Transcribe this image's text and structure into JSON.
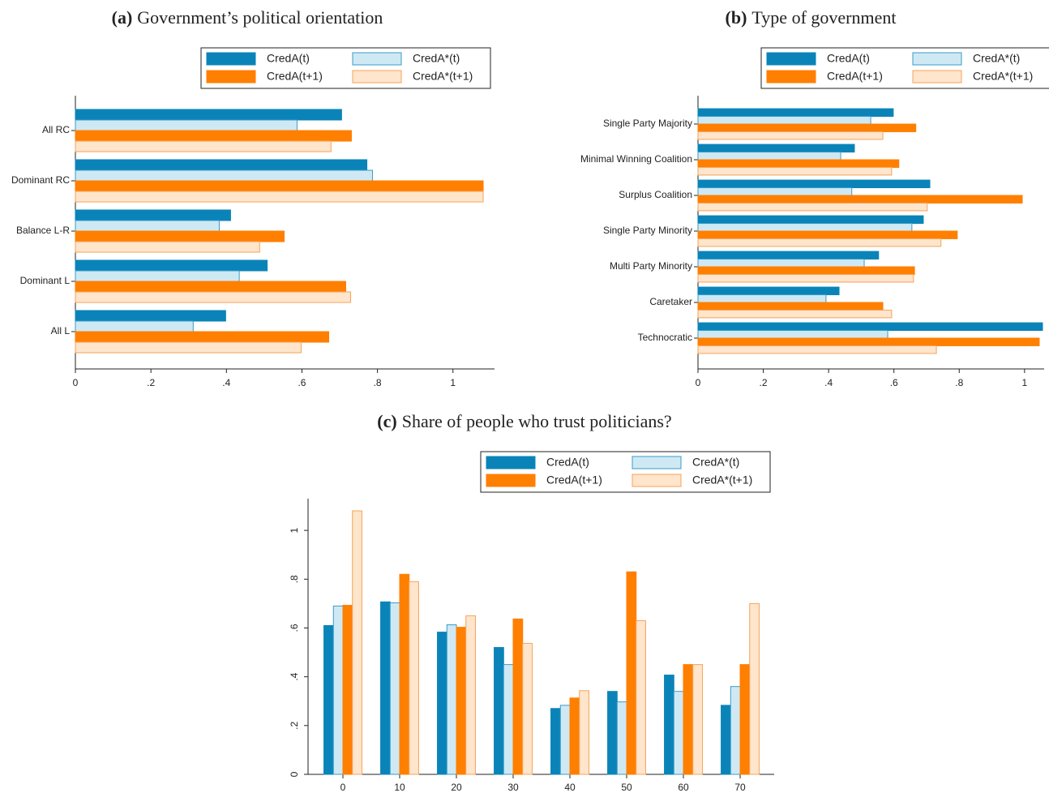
{
  "chart_data": [
    {
      "type": "bar",
      "orientation": "horizontal",
      "panel_label": "(a)",
      "title": "Government’s political orientation",
      "categories": [
        "All RC",
        "Dominant RC",
        "Balance L-R",
        "Dominant L",
        "All L"
      ],
      "series": [
        {
          "name": "CredA(t)",
          "color": "#0a84b8",
          "edgecolor": "#0a84b8",
          "values": [
            0.705,
            0.772,
            0.411,
            0.508,
            0.398
          ]
        },
        {
          "name": "CredA*(t)",
          "color": "#cfe9f4",
          "edgecolor": "#3a9cc6",
          "values": [
            0.587,
            0.787,
            0.381,
            0.434,
            0.312
          ]
        },
        {
          "name": "CredA(t+1)",
          "color": "#ff7f00",
          "edgecolor": "#ff7f00",
          "values": [
            0.731,
            1.08,
            0.553,
            0.716,
            0.671
          ]
        },
        {
          "name": "CredA*(t+1)",
          "color": "#fee5cc",
          "edgecolor": "#f5a35a",
          "values": [
            0.677,
            1.08,
            0.488,
            0.729,
            0.598
          ]
        }
      ],
      "xlim": [
        0,
        1.11
      ],
      "xticks": [
        0,
        {
          "value": 0.2,
          "label": ".2"
        },
        {
          "value": 0.4,
          "label": ".4"
        },
        {
          "value": 0.6,
          "label": ".6"
        },
        {
          "value": 0.8,
          "label": ".8"
        },
        1
      ],
      "legend": "top-right"
    },
    {
      "type": "bar",
      "orientation": "horizontal",
      "panel_label": "(b)",
      "title": "Type of government",
      "categories": [
        "Single Party Majority",
        "Minimal Winning Coalition",
        "Surplus Coalition",
        "Single Party Minority",
        "Multi Party Minority",
        "Caretaker",
        "Technocratic"
      ],
      "series": [
        {
          "name": "CredA(t)",
          "color": "#0a84b8",
          "edgecolor": "#0a84b8",
          "values": [
            0.598,
            0.479,
            0.71,
            0.69,
            0.553,
            0.432,
            1.055
          ]
        },
        {
          "name": "CredA*(t)",
          "color": "#cfe9f4",
          "edgecolor": "#3a9cc6",
          "values": [
            0.529,
            0.437,
            0.471,
            0.655,
            0.509,
            0.392,
            0.581
          ]
        },
        {
          "name": "CredA(t+1)",
          "color": "#ff7f00",
          "edgecolor": "#ff7f00",
          "values": [
            0.667,
            0.615,
            0.993,
            0.794,
            0.663,
            0.566,
            1.045
          ]
        },
        {
          "name": "CredA*(t+1)",
          "color": "#fee5cc",
          "edgecolor": "#f5a35a",
          "values": [
            0.566,
            0.593,
            0.702,
            0.744,
            0.66,
            0.593,
            0.73
          ]
        }
      ],
      "xlim": [
        0,
        1.06
      ],
      "xticks": [
        0,
        {
          "value": 0.2,
          "label": ".2"
        },
        {
          "value": 0.4,
          "label": ".4"
        },
        {
          "value": 0.6,
          "label": ".6"
        },
        {
          "value": 0.8,
          "label": ".8"
        },
        1
      ],
      "legend": "top-right"
    },
    {
      "type": "bar",
      "orientation": "vertical",
      "panel_label": "(c)",
      "title": "Share of people who trust politicians?",
      "categories": [
        "0",
        "10",
        "20",
        "30",
        "40",
        "50",
        "60",
        "70"
      ],
      "series": [
        {
          "name": "CredA(t)",
          "color": "#0a84b8",
          "edgecolor": "#0a84b8",
          "values": [
            0.61,
            0.707,
            0.583,
            0.52,
            0.27,
            0.34,
            0.407,
            0.283
          ]
        },
        {
          "name": "CredA*(t)",
          "color": "#cfe9f4",
          "edgecolor": "#3a9cc6",
          "values": [
            0.69,
            0.703,
            0.613,
            0.45,
            0.283,
            0.297,
            0.34,
            0.36
          ]
        },
        {
          "name": "CredA(t+1)",
          "color": "#ff7f00",
          "edgecolor": "#ff7f00",
          "values": [
            0.693,
            0.82,
            0.603,
            0.637,
            0.313,
            0.83,
            0.45,
            0.45
          ]
        },
        {
          "name": "CredA*(t+1)",
          "color": "#fee5cc",
          "edgecolor": "#f5a35a",
          "values": [
            1.08,
            0.79,
            0.65,
            0.537,
            0.343,
            0.63,
            0.45,
            0.7
          ]
        }
      ],
      "ylim": [
        0,
        1.13
      ],
      "yticks": [
        0,
        {
          "value": 0.2,
          "label": ".2"
        },
        {
          "value": 0.4,
          "label": ".4"
        },
        {
          "value": 0.6,
          "label": ".6"
        },
        {
          "value": 0.8,
          "label": ".8"
        },
        1
      ],
      "legend": "top-right"
    }
  ]
}
